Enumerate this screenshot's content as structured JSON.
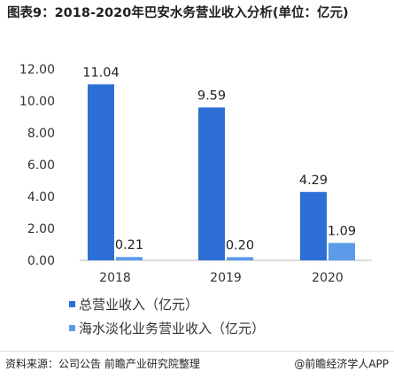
{
  "title": "图表9：2018-2020年巴安水务营业收入分析(单位：亿元)",
  "chart_data": {
    "type": "bar",
    "categories": [
      "2018",
      "2019",
      "2020"
    ],
    "series": [
      {
        "name": "总营业收入（亿元）",
        "values": [
          11.04,
          9.59,
          4.29
        ],
        "color": "#2e6fd6"
      },
      {
        "name": "海水淡化业务营业收入（亿元）",
        "values": [
          0.21,
          0.2,
          1.09
        ],
        "color": "#5b9be8"
      }
    ],
    "value_labels": [
      [
        "11.04",
        "9.59",
        "4.29"
      ],
      [
        "0.21",
        "0.20",
        "1.09"
      ]
    ],
    "y_ticks": [
      "0.00",
      "2.00",
      "4.00",
      "6.00",
      "8.00",
      "10.00",
      "12.00"
    ],
    "ylim": [
      0,
      12
    ],
    "grid": false,
    "legend_position": "bottom"
  },
  "footer": {
    "source": "资料来源：公司公告 前瞻产业研究院整理",
    "brand": "@前瞻经济学人APP"
  }
}
